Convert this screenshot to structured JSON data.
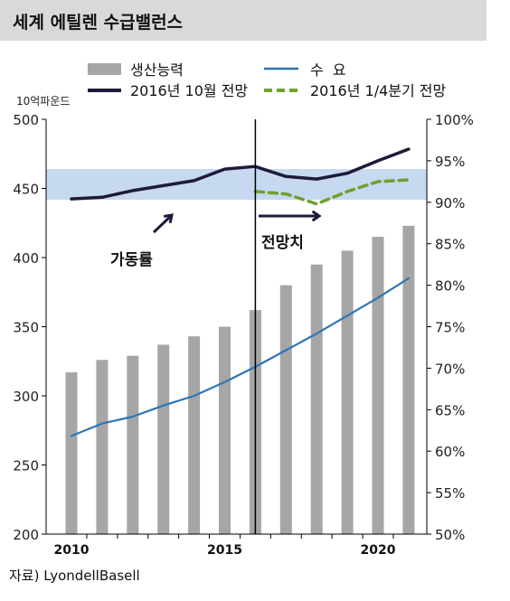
{
  "title": "세계 에틸렌 수급밸런스",
  "source": "자료) LyondellBasell",
  "colors": {
    "capacity": "#a6a6a6",
    "demand": "#2e75b6",
    "util_oct": "#1f1a3a",
    "util_q1": "#70a030",
    "band": "#c6d9f1"
  },
  "chart_data": {
    "type": "bar",
    "left_axis": {
      "label": "10억파운드",
      "min": 200,
      "max": 500,
      "ticks": [
        "200",
        "250",
        "300",
        "350",
        "400",
        "450",
        "500"
      ]
    },
    "right_axis": {
      "min": 50,
      "max": 100,
      "ticks": [
        "50%",
        "55%",
        "60%",
        "65%",
        "70%",
        "75%",
        "80%",
        "85%",
        "90%",
        "95%",
        "100%"
      ]
    },
    "x_labels": [
      {
        "label": "2010",
        "year": 2010
      },
      {
        "label": "2015",
        "year": 2015
      },
      {
        "label": "2020",
        "year": 2020
      }
    ],
    "x": [
      2010,
      2011,
      2012,
      2013,
      2014,
      2015,
      2016,
      2017,
      2018,
      2019,
      2020,
      2021
    ],
    "legend": {
      "capacity": "생산능력",
      "demand": "수  요",
      "util_oct": "2016년 10월 전망",
      "util_q1": "2016년 1/4분기 전망"
    },
    "series": [
      {
        "name": "생산능력",
        "type": "bar",
        "axis": "left",
        "values": [
          317,
          326,
          329,
          337,
          343,
          350,
          362,
          380,
          395,
          405,
          415,
          423
        ]
      },
      {
        "name": "수  요",
        "type": "line",
        "axis": "left",
        "values": [
          271,
          280,
          285,
          293,
          300,
          310,
          321,
          333,
          345,
          358,
          371,
          385
        ]
      },
      {
        "name": "2016년 10월 전망",
        "type": "line",
        "axis": "right",
        "values": [
          90.4,
          90.6,
          91.4,
          92.0,
          92.6,
          94.0,
          94.3,
          93.1,
          92.8,
          93.5,
          95.0,
          96.4
        ]
      },
      {
        "name": "2016년 1/4분기 전망",
        "type": "line",
        "axis": "right",
        "style": "dashed",
        "x": [
          2016,
          2017,
          2018,
          2019,
          2020,
          2021
        ],
        "values": [
          91.3,
          91.0,
          89.8,
          91.3,
          92.5,
          92.7
        ]
      }
    ],
    "shaded_band": {
      "axis": "right",
      "from": 90.3,
      "to": 94.0
    },
    "forecast_divider_year": 2016,
    "annotations": {
      "utilization": "가동률",
      "forecast": "전망치"
    },
    "grid": false
  }
}
